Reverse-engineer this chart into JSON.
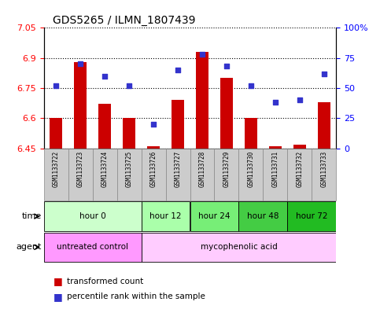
{
  "title": "GDS5265 / ILMN_1807439",
  "samples": [
    "GSM1133722",
    "GSM1133723",
    "GSM1133724",
    "GSM1133725",
    "GSM1133726",
    "GSM1133727",
    "GSM1133728",
    "GSM1133729",
    "GSM1133730",
    "GSM1133731",
    "GSM1133732",
    "GSM1133733"
  ],
  "transformed_count": [
    6.6,
    6.88,
    6.67,
    6.6,
    6.46,
    6.69,
    6.93,
    6.8,
    6.6,
    6.46,
    6.47,
    6.68
  ],
  "percentile_rank": [
    52,
    70,
    60,
    52,
    20,
    65,
    78,
    68,
    52,
    38,
    40,
    62
  ],
  "ylim_left": [
    6.45,
    7.05
  ],
  "ylim_right": [
    0,
    100
  ],
  "yticks_left": [
    6.45,
    6.6,
    6.75,
    6.9,
    7.05
  ],
  "yticks_right": [
    0,
    25,
    50,
    75,
    100
  ],
  "bar_color": "#cc0000",
  "dot_color": "#3333cc",
  "bar_bottom": 6.45,
  "time_groups": [
    {
      "label": "hour 0",
      "start": 0,
      "end": 3,
      "color": "#ccffcc"
    },
    {
      "label": "hour 12",
      "start": 4,
      "end": 5,
      "color": "#aaffaa"
    },
    {
      "label": "hour 24",
      "start": 6,
      "end": 7,
      "color": "#77ee77"
    },
    {
      "label": "hour 48",
      "start": 8,
      "end": 9,
      "color": "#44cc44"
    },
    {
      "label": "hour 72",
      "start": 10,
      "end": 11,
      "color": "#22bb22"
    }
  ],
  "agent_groups": [
    {
      "label": "untreated control",
      "start": 0,
      "end": 3,
      "color": "#ff99ff"
    },
    {
      "label": "mycophenolic acid",
      "start": 4,
      "end": 11,
      "color": "#ffccff"
    }
  ],
  "legend_bar_label": "transformed count",
  "legend_dot_label": "percentile rank within the sample",
  "time_label": "time",
  "agent_label": "agent",
  "sample_box_color": "#cccccc",
  "sample_box_edge": "#888888"
}
